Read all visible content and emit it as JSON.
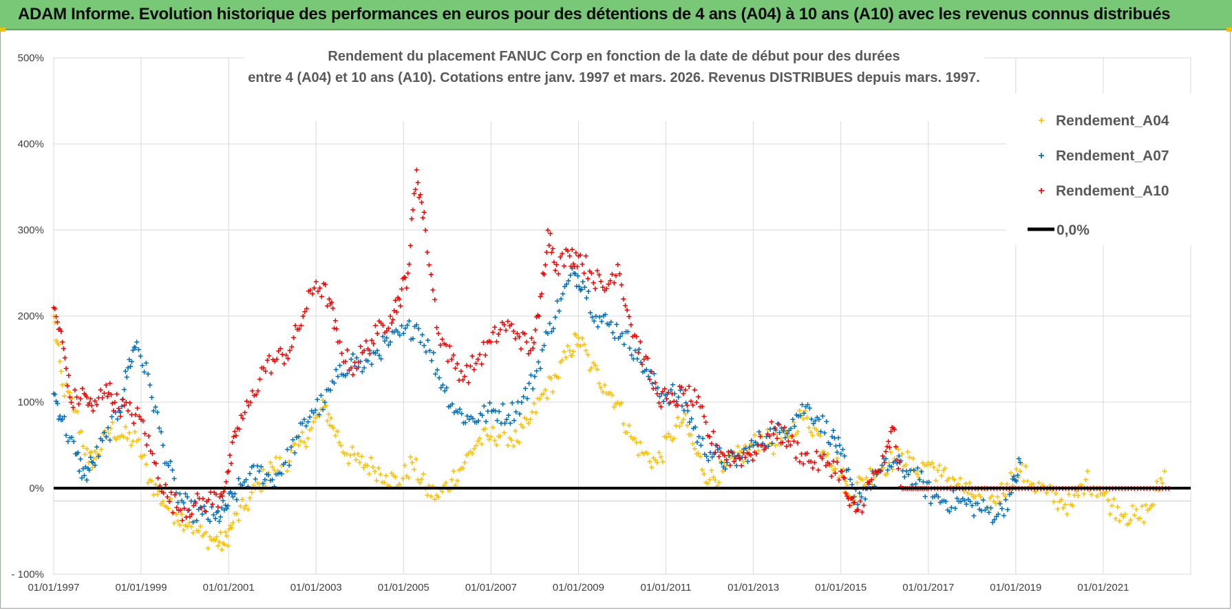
{
  "header": {
    "title": "ADAM Informe. Evolution historique des performances en euros pour des détentions de 4 ans (A04) à 10 ans (A10) avec les revenus connus distribués"
  },
  "colors": {
    "banner": "#78c878",
    "a04": "#ffc000",
    "a07": "#0070c0",
    "a10": "#ff0000",
    "zero": "#000000",
    "grid": "#d9d9d9"
  },
  "chart_data": {
    "type": "scatter",
    "title_lines": [
      "Rendement du placement FANUC Corp en fonction de la date de début pour des durées",
      "entre 4 (A04) et 10 ans (A10). Cotations entre janv. 1997 et mars. 2026. Revenus DISTRIBUES depuis mars. 1997."
    ],
    "xlabel": "",
    "ylabel": "",
    "x_range": [
      1997.0,
      2023.0
    ],
    "ylim": [
      -100,
      500
    ],
    "y_ticks": [
      -100,
      0,
      100,
      200,
      300,
      400,
      500
    ],
    "y_tick_labels": [
      "- 100%",
      "0%",
      "100%",
      "200%",
      "300%",
      "400%",
      "500%"
    ],
    "x_tick_years": [
      1997,
      1999,
      2001,
      2003,
      2005,
      2007,
      2009,
      2011,
      2013,
      2015,
      2017,
      2019,
      2021
    ],
    "x_tick_labels": [
      "01/01/1997",
      "01/01/1999",
      "01/01/2001",
      "01/01/2003",
      "01/01/2005",
      "01/01/2007",
      "01/01/2009",
      "01/01/2011",
      "01/01/2013",
      "01/01/2015",
      "01/01/2017",
      "01/01/2019",
      "01/01/2021"
    ],
    "legend": {
      "position": "top-right",
      "entries": [
        "Rendement_A04",
        "Rendement_A07",
        "Rendement_A10",
        "0,0%"
      ]
    },
    "series": [
      {
        "name": "Rendement_A04",
        "x": [
          1997.0,
          1997.2,
          1997.5,
          1997.8,
          1998.0,
          1998.3,
          1998.6,
          1998.9,
          1999.2,
          1999.5,
          1999.8,
          2000.1,
          2000.4,
          2000.7,
          2000.9,
          2001.1,
          2001.4,
          2001.7,
          2002.0,
          2002.3,
          2002.6,
          2002.9,
          2003.2,
          2003.4,
          2003.7,
          2004.0,
          2004.3,
          2004.6,
          2004.9,
          2005.2,
          2005.5,
          2005.8,
          2006.1,
          2006.4,
          2006.7,
          2007.0,
          2007.3,
          2007.6,
          2007.9,
          2008.2,
          2008.5,
          2008.8,
          2009.0,
          2009.3,
          2009.6,
          2009.9,
          2010.2,
          2010.5,
          2010.8,
          2011.1,
          2011.4,
          2011.7,
          2012.0,
          2012.3,
          2012.6,
          2012.9,
          2013.2,
          2013.5,
          2013.8,
          2014.1,
          2014.4,
          2014.7,
          2015.0,
          2015.2,
          2015.5,
          2015.8,
          2016.1,
          2016.4,
          2016.7,
          2017.0,
          2017.3,
          2017.6,
          2017.9,
          2018.2,
          2018.5,
          2018.8,
          2019.1,
          2019.4,
          2019.7,
          2020.0,
          2020.3,
          2020.6,
          2020.9,
          2021.2,
          2021.5,
          2021.8,
          2022.1,
          2022.4
        ],
        "values": [
          200,
          120,
          90,
          30,
          40,
          70,
          60,
          55,
          10,
          -15,
          -30,
          -40,
          -55,
          -60,
          -65,
          -40,
          -20,
          5,
          25,
          30,
          50,
          70,
          95,
          70,
          40,
          30,
          25,
          15,
          5,
          30,
          0,
          -10,
          10,
          30,
          55,
          60,
          65,
          55,
          80,
          110,
          130,
          160,
          175,
          140,
          120,
          100,
          60,
          40,
          30,
          60,
          80,
          40,
          10,
          20,
          35,
          45,
          60,
          50,
          60,
          85,
          70,
          40,
          20,
          -10,
          10,
          20,
          30,
          40,
          20,
          30,
          15,
          10,
          -5,
          -10,
          -15,
          5,
          20,
          5,
          -5,
          -15,
          -20,
          10,
          0,
          -20,
          -30,
          -35,
          -20,
          20
        ]
      },
      {
        "name": "Rendement_A07",
        "x": [
          1997.0,
          1997.2,
          1997.5,
          1997.7,
          1997.9,
          1998.2,
          1998.5,
          1998.7,
          1998.9,
          1999.2,
          1999.5,
          1999.8,
          2000.1,
          2000.4,
          2000.7,
          2000.9,
          2001.1,
          2001.4,
          2001.7,
          2002.0,
          2002.3,
          2002.6,
          2002.9,
          2003.2,
          2003.5,
          2003.8,
          2004.1,
          2004.4,
          2004.7,
          2005.0,
          2005.3,
          2005.6,
          2005.9,
          2006.2,
          2006.5,
          2006.8,
          2007.1,
          2007.4,
          2007.7,
          2008.0,
          2008.3,
          2008.6,
          2008.9,
          2009.1,
          2009.4,
          2009.7,
          2010.0,
          2010.3,
          2010.6,
          2010.9,
          2011.2,
          2011.5,
          2011.8,
          2012.1,
          2012.4,
          2012.7,
          2013.0,
          2013.3,
          2013.6,
          2013.9,
          2014.2,
          2014.5,
          2014.8,
          2015.0,
          2015.3,
          2015.6,
          2015.9,
          2016.2,
          2016.5,
          2016.8,
          2017.1,
          2017.4,
          2017.7,
          2018.0,
          2018.3,
          2018.6,
          2018.9,
          2019.1
        ],
        "values": [
          110,
          80,
          40,
          15,
          30,
          60,
          90,
          140,
          170,
          120,
          50,
          -5,
          -25,
          -30,
          -35,
          -25,
          -10,
          10,
          20,
          10,
          30,
          60,
          90,
          100,
          130,
          150,
          140,
          160,
          170,
          180,
          190,
          160,
          120,
          90,
          80,
          85,
          90,
          85,
          100,
          130,
          180,
          220,
          250,
          240,
          200,
          190,
          180,
          160,
          130,
          110,
          110,
          90,
          50,
          40,
          30,
          35,
          50,
          60,
          65,
          80,
          95,
          80,
          60,
          40,
          -10,
          0,
          20,
          30,
          20,
          10,
          -10,
          -15,
          -15,
          -20,
          -25,
          -30,
          -5,
          30
        ]
      },
      {
        "name": "Rendement_A10",
        "x": [
          1997.0,
          1997.2,
          1997.4,
          1997.7,
          1997.9,
          1998.2,
          1998.4,
          1998.7,
          1999.0,
          1999.3,
          1999.6,
          1999.9,
          2000.2,
          2000.5,
          2000.8,
          2001.0,
          2001.2,
          2001.5,
          2001.8,
          2002.1,
          2002.4,
          2002.7,
          2003.0,
          2003.3,
          2003.5,
          2003.8,
          2004.1,
          2004.4,
          2004.7,
          2004.9,
          2005.1,
          2005.3,
          2005.5,
          2005.8,
          2006.1,
          2006.4,
          2006.7,
          2007.0,
          2007.3,
          2007.6,
          2007.9,
          2008.1,
          2008.3,
          2008.5,
          2008.8,
          2009.0,
          2009.3,
          2009.6,
          2009.9,
          2010.2,
          2010.5,
          2010.8,
          2011.1,
          2011.4,
          2011.7,
          2012.0,
          2012.3,
          2012.6,
          2012.9,
          2013.2,
          2013.5,
          2013.8,
          2014.1,
          2014.4,
          2014.7,
          2015.0,
          2015.2,
          2015.4,
          2015.7,
          2016.0,
          2016.2,
          2016.4,
          2016.7,
          2017.0,
          2017.5,
          2018.0,
          2018.5,
          2019.0,
          2019.5,
          2020.0,
          2020.5,
          2021.0,
          2021.5,
          2022.0,
          2022.5
        ],
        "values": [
          210,
          170,
          100,
          110,
          90,
          120,
          100,
          90,
          80,
          30,
          -10,
          -25,
          -20,
          -15,
          -10,
          20,
          70,
          100,
          140,
          150,
          160,
          200,
          240,
          220,
          170,
          140,
          160,
          180,
          200,
          220,
          250,
          370,
          300,
          180,
          150,
          130,
          150,
          170,
          190,
          180,
          160,
          200,
          300,
          260,
          270,
          270,
          250,
          230,
          260,
          190,
          150,
          110,
          100,
          110,
          100,
          60,
          40,
          35,
          40,
          50,
          70,
          55,
          40,
          30,
          30,
          20,
          -20,
          -25,
          10,
          30,
          70,
          0,
          0,
          0,
          0,
          0,
          0,
          0,
          0,
          0,
          0,
          0,
          0,
          0,
          0
        ]
      }
    ]
  }
}
